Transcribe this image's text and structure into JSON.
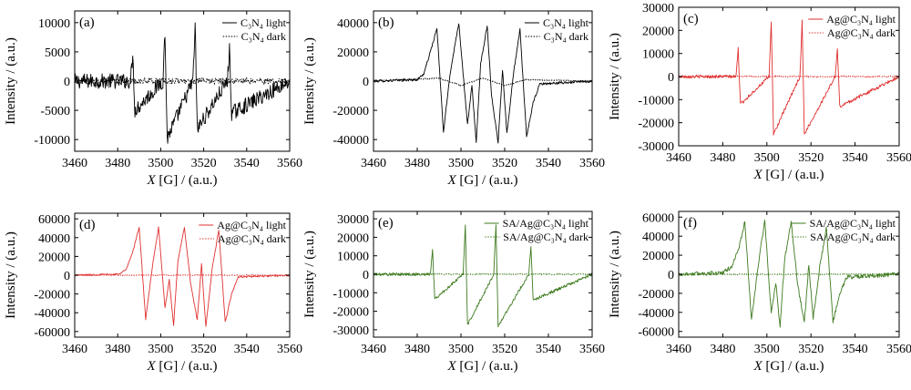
{
  "chart_data": [
    {
      "type": "line",
      "panel_label": "(a)",
      "xlabel_prefix": "X",
      "xlabel_suffix": " [G] / (a.u.)",
      "ylabel": "Intensity / (a.u.)",
      "xlim": [
        3460,
        3560
      ],
      "ylim": [
        -12000,
        12000
      ],
      "x_ticks": [
        3460,
        3480,
        3500,
        3520,
        3540,
        3560
      ],
      "y_ticks": [
        -10000,
        -5000,
        0,
        5000,
        10000
      ],
      "color": "#000000",
      "legend_placement": "top-right",
      "series": [
        {
          "name": "C₃N₄ light",
          "style": "solid",
          "x": [
            3460,
            3486,
            3487,
            3488,
            3501,
            3502,
            3503,
            3515,
            3516,
            3517,
            3531,
            3532,
            3533,
            3560
          ],
          "y": [
            0,
            0,
            4500,
            -5000,
            0,
            8300,
            -9800,
            0,
            9700,
            -8200,
            0,
            5300,
            -5500,
            0
          ],
          "noise": 1300
        },
        {
          "name": "C₃N₄ dark",
          "style": "dotted",
          "x": [
            3460,
            3560
          ],
          "y": [
            0,
            0
          ],
          "noise": 500
        }
      ]
    },
    {
      "type": "line",
      "panel_label": "(b)",
      "xlabel_prefix": "X",
      "xlabel_suffix": " [G] / (a.u.)",
      "ylabel": "Intensity / (a.u.)",
      "xlim": [
        3460,
        3560
      ],
      "ylim": [
        -48000,
        48000
      ],
      "x_ticks": [
        3460,
        3480,
        3500,
        3520,
        3540,
        3560
      ],
      "y_ticks": [
        -40000,
        -20000,
        0,
        20000,
        40000
      ],
      "color": "#000000",
      "legend_placement": "top-right",
      "series": [
        {
          "name": "C₃N₄ light",
          "style": "solid",
          "x": [
            3460,
            3480,
            3483,
            3486,
            3489,
            3492,
            3495,
            3499,
            3503,
            3505,
            3507,
            3509,
            3512,
            3514,
            3517,
            3519,
            3521,
            3524,
            3527,
            3530,
            3533,
            3536,
            3560
          ],
          "y": [
            0,
            1000,
            5000,
            20000,
            36000,
            -35000,
            5000,
            40000,
            -30000,
            -3000,
            -42000,
            12000,
            38000,
            -10000,
            -42000,
            8000,
            -36000,
            5000,
            35000,
            -38000,
            -15000,
            -2000,
            0
          ],
          "noise": 900
        },
        {
          "name": "C₃N₄ dark",
          "style": "dotted",
          "x": [
            3460,
            3490,
            3500,
            3510,
            3520,
            3530,
            3560
          ],
          "y": [
            0,
            2000,
            -3000,
            2000,
            -3000,
            1000,
            0
          ],
          "noise": 300
        }
      ]
    },
    {
      "type": "line",
      "panel_label": "(c)",
      "xlabel_prefix": "X",
      "xlabel_suffix": " [G] / (a.u.)",
      "ylabel": "Intensity / (a.u.)",
      "xlim": [
        3460,
        3560
      ],
      "ylim": [
        -30000,
        30000
      ],
      "x_ticks": [
        3460,
        3480,
        3500,
        3520,
        3540,
        3560
      ],
      "y_ticks": [
        -30000,
        -20000,
        -10000,
        0,
        10000,
        20000,
        30000
      ],
      "color": "#e03030",
      "legend_placement": "top-right",
      "series": [
        {
          "name": "Ag@C₃N₄ light",
          "style": "solid",
          "x": [
            3460,
            3486,
            3487,
            3488,
            3501,
            3502,
            3503,
            3515,
            3516,
            3517,
            3531,
            3532,
            3533,
            3560
          ],
          "y": [
            0,
            0,
            12000,
            -12000,
            0,
            24000,
            -25000,
            0,
            24500,
            -25000,
            0,
            12000,
            -13000,
            0
          ],
          "noise": 700
        },
        {
          "name": "Ag@C₃N₄ dark",
          "style": "dotted",
          "x": [
            3460,
            3560
          ],
          "y": [
            0,
            0
          ],
          "noise": 300
        }
      ]
    },
    {
      "type": "line",
      "panel_label": "(d)",
      "xlabel_prefix": "X",
      "xlabel_suffix": " [G] / (a.u.)",
      "ylabel": "Intensity / (a.u.)",
      "xlim": [
        3460,
        3560
      ],
      "ylim": [
        -66000,
        66000
      ],
      "x_ticks": [
        3460,
        3480,
        3500,
        3520,
        3540,
        3560
      ],
      "y_ticks": [
        -60000,
        -40000,
        -20000,
        0,
        20000,
        40000,
        60000
      ],
      "color": "#e03030",
      "legend_placement": "top-right",
      "series": [
        {
          "name": "Ag@C₃N₄ light",
          "style": "solid",
          "x": [
            3460,
            3480,
            3484,
            3487,
            3490,
            3493,
            3496,
            3499,
            3502,
            3504,
            3506,
            3508,
            3511,
            3514,
            3517,
            3519,
            3521,
            3524,
            3527,
            3530,
            3533,
            3536,
            3560
          ],
          "y": [
            0,
            1000,
            6000,
            25000,
            51000,
            -47000,
            7000,
            51000,
            -35000,
            -5000,
            -54000,
            15000,
            51000,
            -10000,
            -48000,
            12000,
            -55000,
            8000,
            48000,
            -50000,
            -20000,
            -2000,
            0
          ],
          "noise": 900
        },
        {
          "name": "Ag@C₃N₄ dark",
          "style": "dotted",
          "x": [
            3460,
            3560
          ],
          "y": [
            0,
            0
          ],
          "noise": 400
        }
      ]
    },
    {
      "type": "line",
      "panel_label": "(e)",
      "xlabel_prefix": "X",
      "xlabel_suffix": " [G] / (a.u.)",
      "ylabel": "Intensity / (a.u.)",
      "xlim": [
        3460,
        3560
      ],
      "ylim": [
        -34000,
        34000
      ],
      "x_ticks": [
        3460,
        3480,
        3500,
        3520,
        3540,
        3560
      ],
      "y_ticks": [
        -30000,
        -20000,
        -10000,
        0,
        10000,
        20000,
        30000
      ],
      "color": "#3d7a1e",
      "legend_placement": "top-right",
      "series": [
        {
          "name": "SA/Ag@C₃N₄ light",
          "style": "solid",
          "x": [
            3460,
            3486,
            3487,
            3488,
            3501,
            3502,
            3503,
            3515,
            3516,
            3517,
            3531,
            3532,
            3533,
            3560
          ],
          "y": [
            0,
            0,
            13500,
            -13500,
            0,
            27000,
            -27500,
            0,
            27000,
            -28000,
            0,
            15500,
            -14000,
            0
          ],
          "noise": 800
        },
        {
          "name": "SA/Ag@C₃N₄ dark",
          "style": "dotted",
          "x": [
            3460,
            3560
          ],
          "y": [
            0,
            0
          ],
          "noise": 300
        }
      ]
    },
    {
      "type": "line",
      "panel_label": "(f)",
      "xlabel_prefix": "X",
      "xlabel_suffix": " [G] / (a.u.)",
      "ylabel": "Intensity / (a.u.)",
      "xlim": [
        3460,
        3560
      ],
      "ylim": [
        -66000,
        66000
      ],
      "x_ticks": [
        3460,
        3480,
        3500,
        3520,
        3540,
        3560
      ],
      "y_ticks": [
        -60000,
        -40000,
        -20000,
        0,
        20000,
        40000,
        60000
      ],
      "color": "#3d7a1e",
      "legend_placement": "top-right",
      "series": [
        {
          "name": "SA/Ag@C₃N₄ light",
          "style": "solid",
          "x": [
            3460,
            3480,
            3484,
            3487,
            3490,
            3493,
            3496,
            3499,
            3502,
            3504,
            3506,
            3508,
            3511,
            3514,
            3517,
            3519,
            3521,
            3524,
            3527,
            3530,
            3533,
            3536,
            3560
          ],
          "y": [
            0,
            1500,
            8000,
            25000,
            55000,
            -48000,
            8000,
            57000,
            -42000,
            -8000,
            -56000,
            15000,
            55000,
            -12000,
            -50000,
            10000,
            -47000,
            8000,
            48000,
            -50000,
            -22000,
            -3000,
            0
          ],
          "noise": 2200
        },
        {
          "name": "SA/Ag@C₃N₄ dark",
          "style": "dotted",
          "x": [
            3460,
            3560
          ],
          "y": [
            0,
            0
          ],
          "noise": 500
        }
      ]
    }
  ]
}
